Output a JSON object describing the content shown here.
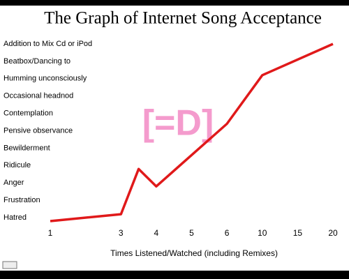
{
  "chart_data": {
    "type": "line",
    "title": "The Graph of Internet Song Acceptance",
    "watermark": "[=D]",
    "xlabel": "Times Listened/Watched (including Remixes)",
    "xlim": [
      1,
      20
    ],
    "xticks": [
      1,
      3,
      4,
      5,
      6,
      10,
      15,
      20
    ],
    "ylim": [
      -0.5,
      10.5
    ],
    "yticks": [
      {
        "value": 0,
        "label": "Hatred"
      },
      {
        "value": 1,
        "label": "Frustration"
      },
      {
        "value": 2,
        "label": "Anger"
      },
      {
        "value": 3,
        "label": "Ridicule"
      },
      {
        "value": 4,
        "label": "Bewilderment"
      },
      {
        "value": 5,
        "label": "Pensive observance"
      },
      {
        "value": 6,
        "label": "Contemplation"
      },
      {
        "value": 7,
        "label": "Occasional headnod"
      },
      {
        "value": 8,
        "label": "Humming unconsciously"
      },
      {
        "value": 9,
        "label": "Beatbox/Dancing to"
      },
      {
        "value": 10,
        "label": "Addition to Mix Cd or iPod"
      }
    ],
    "series": [
      {
        "color": "#e0191a",
        "x": [
          1,
          3,
          3.5,
          4,
          6,
          10,
          20
        ],
        "values": [
          -0.2,
          0.2,
          2.8,
          1.8,
          5.4,
          8.2,
          10
        ]
      }
    ]
  }
}
